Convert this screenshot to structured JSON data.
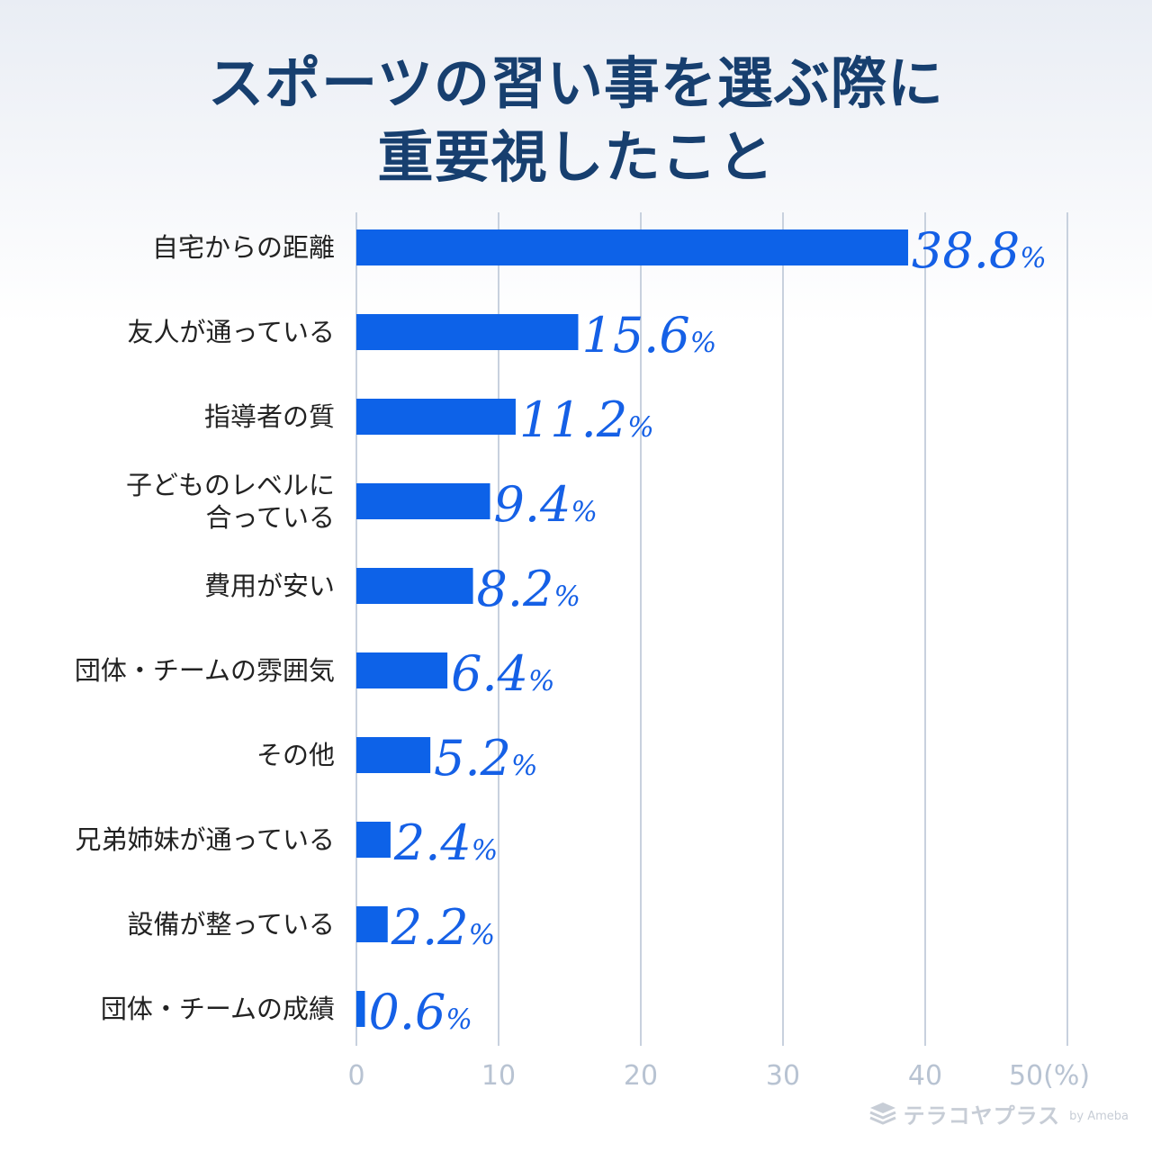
{
  "title": {
    "line1": "スポーツの習い事を選ぶ際に",
    "line2": "重要視したこと"
  },
  "colors": {
    "bar": "#0d62e8",
    "value_text": "#1560e6",
    "title": "#173f6f",
    "grid": "#c8d1de",
    "tick": "#b8c3d2"
  },
  "chart_data": {
    "type": "bar",
    "orientation": "horizontal",
    "title": "スポーツの習い事を選ぶ際に重要視したこと",
    "categories": [
      [
        "自宅からの距離"
      ],
      [
        "友人が通っている"
      ],
      [
        "指導者の質"
      ],
      [
        "子どものレベルに",
        "合っている"
      ],
      [
        "費用が安い"
      ],
      [
        "団体・チームの雰囲気"
      ],
      [
        "その他"
      ],
      [
        "兄弟姉妹が通っている"
      ],
      [
        "設備が整っている"
      ],
      [
        "団体・チームの成績"
      ]
    ],
    "values": [
      38.8,
      15.6,
      11.2,
      9.4,
      8.2,
      6.4,
      5.2,
      2.4,
      2.2,
      0.6
    ],
    "value_labels": [
      "38.8",
      "15.6",
      "11.2",
      "9.4",
      "8.2",
      "6.4",
      "5.2",
      "2.4",
      "2.2",
      "0.6"
    ],
    "value_unit": "%",
    "xlim": [
      0,
      50
    ],
    "xticks": [
      "0",
      "10",
      "20",
      "30",
      "40",
      "50(%)"
    ],
    "grid": true,
    "legend": "none"
  },
  "logo": {
    "text": "テラコヤプラス",
    "suffix": "by Ameba"
  }
}
